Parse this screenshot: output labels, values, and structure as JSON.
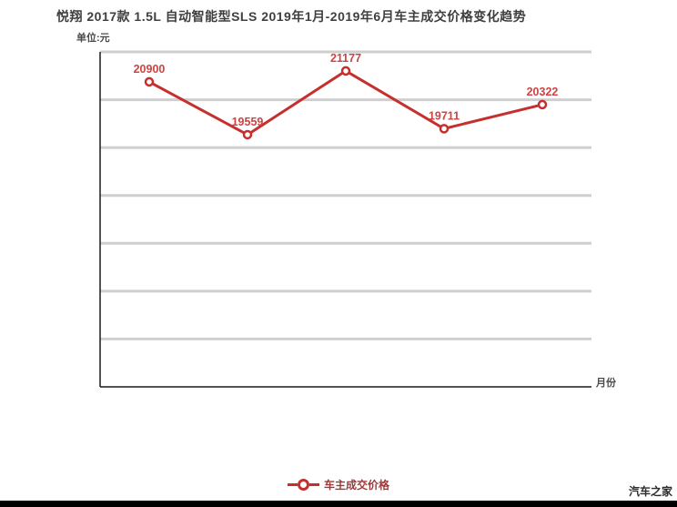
{
  "header": {
    "title": "悦翔 2017款 1.5L 自动智能型SLS 2019年1月-2019年6月车主成交价格变化趋势",
    "unit_label": "单位:元"
  },
  "chart_data": {
    "type": "line",
    "title": "悦翔 2017款 1.5L 自动智能型SLS 2019年1月-2019年6月车主成交价格变化趋势",
    "ylabel": "单位:元",
    "xlabel": "月份",
    "ylim": [
      13160,
      21660
    ],
    "grid": true,
    "gridline_count": 7,
    "legend_position": "bottom-center",
    "series": [
      {
        "name": "车主成交价格",
        "color": "#c5302e",
        "values": [
          20900,
          19559,
          21177,
          19711,
          20322
        ]
      }
    ],
    "point_labels": [
      "20900",
      "19559",
      "21177",
      "19711",
      "20322"
    ]
  },
  "legend": {
    "label": "车主成交价格"
  },
  "axes": {
    "x_label": "月份"
  },
  "footer": {
    "watermark": "汽车之家"
  },
  "colors": {
    "accent_red": "#c5302e",
    "point_label_red": "#cf4343",
    "legend_text": "#9c3a38",
    "grid": "#cfcfcf",
    "axis": "#1a1a1a",
    "title_text": "#3f3f3f",
    "footer_bar": "#000000"
  }
}
